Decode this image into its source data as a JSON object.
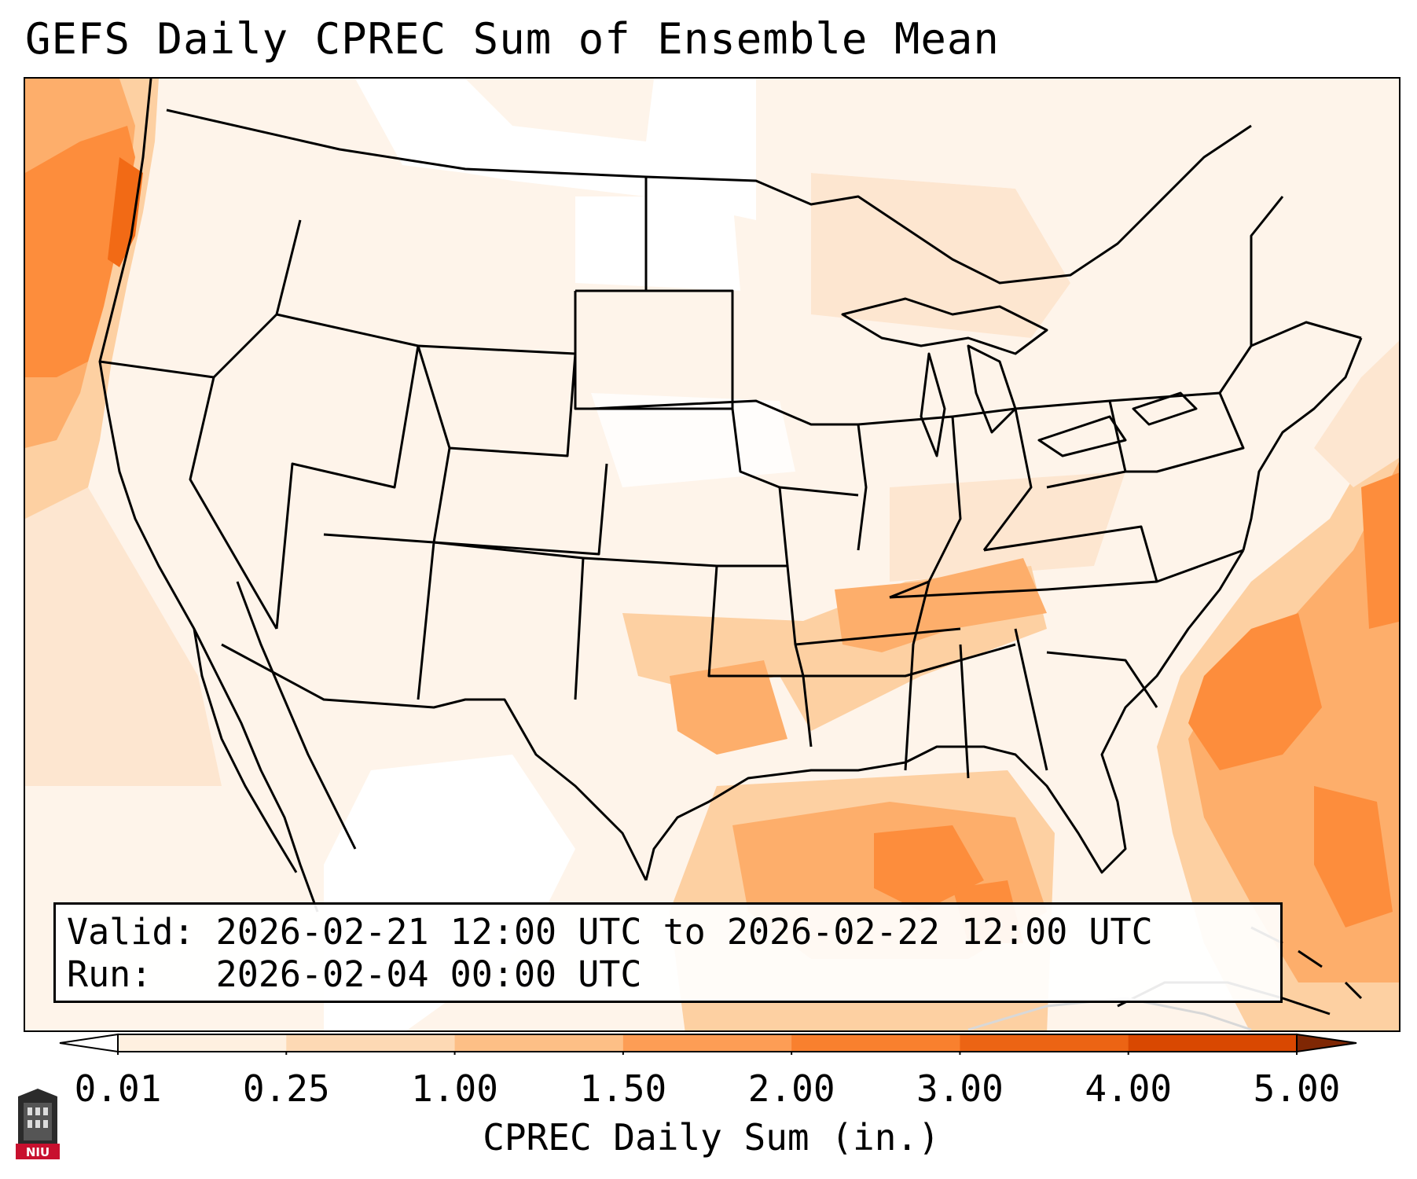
{
  "title": "GEFS Daily CPREC Sum of Ensemble Mean",
  "info": {
    "valid": "Valid: 2026-02-21 12:00 UTC to 2026-02-22 12:00 UTC",
    "run": "Run:   2026-02-04 00:00 UTC"
  },
  "colorbar": {
    "label": "CPREC Daily Sum (in.)",
    "levels": [
      "0.01",
      "0.25",
      "1.00",
      "1.50",
      "2.00",
      "3.00",
      "4.00",
      "5.00"
    ],
    "colors": [
      "#fff5eb",
      "#fee6ce",
      "#fdd0a2",
      "#fdae6b",
      "#fd8d3c",
      "#f16913",
      "#d94801",
      "#a63603"
    ],
    "extend": "both"
  },
  "logo": {
    "text": "NIU",
    "icon": "niu-logo-icon",
    "color": "#c8102e"
  },
  "map": {
    "projection": "Lambert Conformal (CONUS)",
    "shading_colors": {
      "none": "#ffffff",
      "trace": "#fef4ea",
      "light": "#fde6d0",
      "moderate": "#fdd0a2",
      "heavy": "#fdae6b",
      "very_heavy": "#fd8d3c",
      "extreme": "#f26a15"
    }
  }
}
